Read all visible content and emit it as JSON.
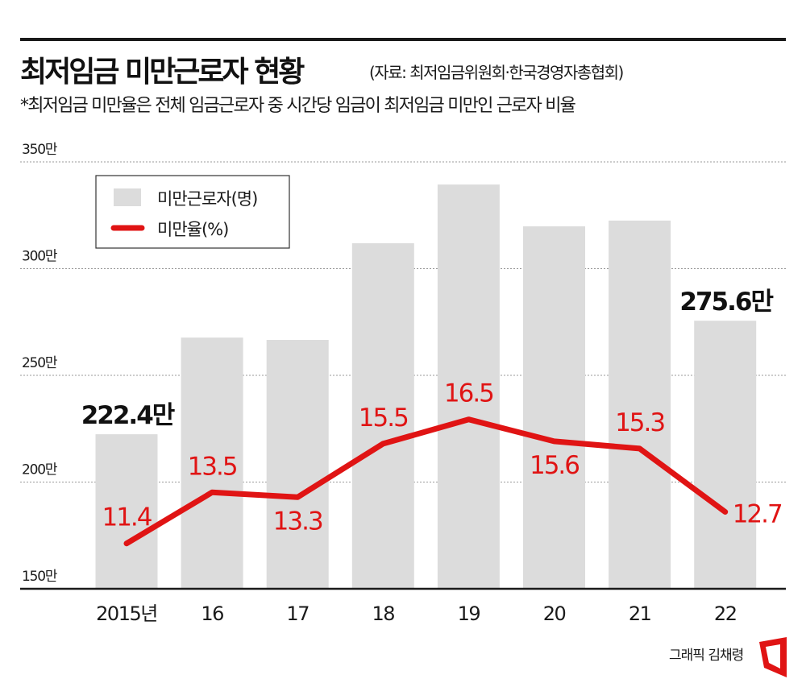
{
  "header": {
    "title": "최저임금 미만근로자 현황",
    "source": "(자료: 최저임금위원회·한국경영자총협회)",
    "note": "*최저임금 미만율은 전체 임금근로자 중 시간당 임금이 최저임금 미만인 근로자 비율"
  },
  "credit": {
    "text": "그래픽 김채령",
    "logo": "red-frame-logo"
  },
  "colors": {
    "bar": "#dcdcdc",
    "line": "#e01414",
    "text": "#111111",
    "grid": "#9a9a9a"
  },
  "chart_data": {
    "type": "bar+line",
    "title": "최저임금 미만근로자 현황",
    "categories": [
      "2015년",
      "16",
      "17",
      "18",
      "19",
      "20",
      "21",
      "22"
    ],
    "yticks": [
      {
        "value": 150,
        "label": "150만"
      },
      {
        "value": 200,
        "label": "200만"
      },
      {
        "value": 250,
        "label": "250만"
      },
      {
        "value": 300,
        "label": "300만"
      },
      {
        "value": 350,
        "label": "350만"
      }
    ],
    "ylim": [
      150,
      350
    ],
    "grid": true,
    "legend_position": "top-left",
    "series": [
      {
        "name": "미만근로자(명)",
        "type": "bar",
        "unit": "만",
        "values": [
          222.4,
          267.7,
          266.6,
          311.9,
          339.4,
          319.8,
          322.5,
          275.6
        ],
        "labels": [
          "222.4만",
          "",
          "",
          "",
          "",
          "",
          "",
          "275.6만"
        ]
      },
      {
        "name": "미만율(%)",
        "type": "line",
        "values": [
          11.4,
          13.5,
          13.3,
          15.5,
          16.5,
          15.6,
          15.3,
          12.7
        ],
        "labels": [
          "11.4",
          "13.5",
          "13.3",
          "15.5",
          "16.5",
          "15.6",
          "15.3",
          "12.7"
        ]
      }
    ]
  }
}
